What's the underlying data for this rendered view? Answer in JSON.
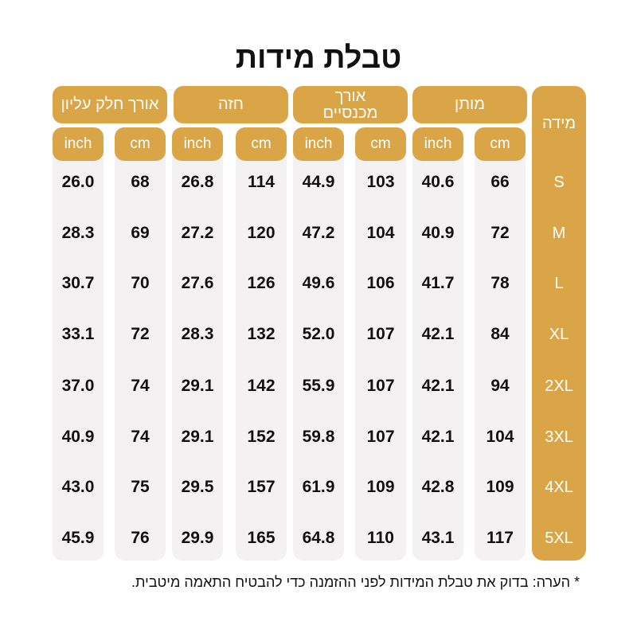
{
  "title": "טבלת מידות",
  "size_header": "מידה",
  "groups": [
    {
      "label": "אורך חלק עליון"
    },
    {
      "label": "חזה"
    },
    {
      "label": "אורך מכנסיים"
    },
    {
      "label": "מותן"
    }
  ],
  "units": [
    "inch",
    "cm",
    "inch",
    "cm",
    "inch",
    "cm",
    "inch",
    "cm"
  ],
  "rows": [
    {
      "size": "S",
      "values": [
        "26.0",
        "68",
        "26.8",
        "114",
        "44.9",
        "103",
        "40.6",
        "66"
      ]
    },
    {
      "size": "M",
      "values": [
        "28.3",
        "69",
        "27.2",
        "120",
        "47.2",
        "104",
        "40.9",
        "72"
      ]
    },
    {
      "size": "L",
      "values": [
        "30.7",
        "70",
        "27.6",
        "126",
        "49.6",
        "106",
        "41.7",
        "78"
      ]
    },
    {
      "size": "XL",
      "values": [
        "33.1",
        "72",
        "28.3",
        "132",
        "52.0",
        "107",
        "42.1",
        "84"
      ]
    },
    {
      "size": "2XL",
      "values": [
        "37.0",
        "74",
        "29.1",
        "142",
        "55.9",
        "107",
        "42.1",
        "94"
      ]
    },
    {
      "size": "3XL",
      "values": [
        "40.9",
        "74",
        "29.1",
        "152",
        "59.8",
        "107",
        "42.1",
        "104"
      ]
    },
    {
      "size": "4XL",
      "values": [
        "43.0",
        "75",
        "29.5",
        "157",
        "61.9",
        "109",
        "42.8",
        "109"
      ]
    },
    {
      "size": "5XL",
      "values": [
        "45.9",
        "76",
        "29.9",
        "165",
        "64.8",
        "110",
        "43.1",
        "117"
      ]
    }
  ],
  "note": "* הערה: בדוק את טבלת המידות לפני ההזמנה כדי להבטיח התאמה מיטבית.",
  "colors": {
    "accent": "#d9a546",
    "column_bg": "#f4f1f3",
    "text": "#111111"
  }
}
